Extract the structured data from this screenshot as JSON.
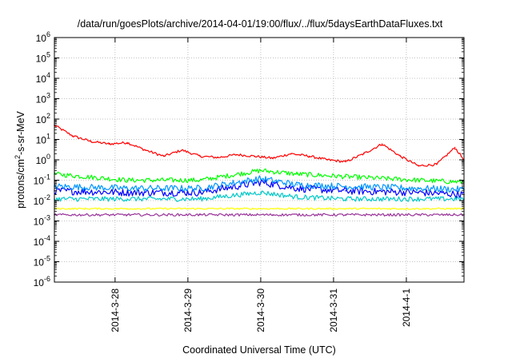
{
  "chart_data": {
    "type": "line",
    "title": "/data/run/goesPlots/archive/2014-04-01/19:00/flux/../flux/5daysEarthDataFluxes.txt",
    "xlabel": "Coordinated Universal Time (UTC)",
    "ylabel_parts": {
      "pre": "protons/cm",
      "sup": "2",
      "post": "-s-sr-MeV"
    },
    "y_scale": "log",
    "ylim": [
      1e-06,
      1000000.0
    ],
    "y_ticks": [
      {
        "value": 1000000.0,
        "base": "10",
        "exp": "6"
      },
      {
        "value": 100000.0,
        "base": "10",
        "exp": "5"
      },
      {
        "value": 10000.0,
        "base": "10",
        "exp": "4"
      },
      {
        "value": 1000.0,
        "base": "10",
        "exp": "3"
      },
      {
        "value": 100.0,
        "base": "10",
        "exp": "2"
      },
      {
        "value": 10.0,
        "base": "10",
        "exp": "1"
      },
      {
        "value": 1,
        "base": "10",
        "exp": "0"
      },
      {
        "value": 0.1,
        "base": "10",
        "exp": "-1"
      },
      {
        "value": 0.01,
        "base": "10",
        "exp": "-2"
      },
      {
        "value": 0.001,
        "base": "10",
        "exp": "-3"
      },
      {
        "value": 0.0001,
        "base": "10",
        "exp": "-4"
      },
      {
        "value": 1e-05,
        "base": "10",
        "exp": "-5"
      },
      {
        "value": 1e-06,
        "base": "10",
        "exp": "-6"
      }
    ],
    "x_range_days": [
      "2014-03-27 04:00",
      "2014-04-01 19:00"
    ],
    "x_ticks": [
      {
        "day": "2014-03-28",
        "label": "2014-3-28"
      },
      {
        "day": "2014-03-29",
        "label": "2014-3-29"
      },
      {
        "day": "2014-03-30",
        "label": "2014-3-30"
      },
      {
        "day": "2014-03-31",
        "label": "2014-3-31"
      },
      {
        "day": "2014-04-01",
        "label": "2014-4-1"
      }
    ],
    "grid": true,
    "series": [
      {
        "color": "#ff0000",
        "x": [
          "2014-03-27 04:00",
          "2014-03-27 10:00",
          "2014-03-27 16:00",
          "2014-03-27 22:00",
          "2014-03-28 04:00",
          "2014-03-28 10:00",
          "2014-03-28 16:00",
          "2014-03-28 22:00",
          "2014-03-29 04:00",
          "2014-03-29 10:00",
          "2014-03-29 16:00",
          "2014-03-29 22:00",
          "2014-03-30 04:00",
          "2014-03-30 10:00",
          "2014-03-30 16:00",
          "2014-03-30 22:00",
          "2014-03-31 04:00",
          "2014-03-31 10:00",
          "2014-03-31 16:00",
          "2014-03-31 22:00",
          "2014-04-01 04:00",
          "2014-04-01 10:00",
          "2014-04-01 16:00",
          "2014-04-01 19:00"
        ],
        "values": [
          50,
          15,
          8,
          6,
          7,
          3,
          1.5,
          3,
          1.5,
          1.3,
          1.8,
          1.5,
          1.2,
          2,
          1.5,
          1,
          0.8,
          2,
          6,
          1.5,
          0.5,
          0.6,
          4,
          1
        ]
      },
      {
        "color": "#00ff00",
        "x": [
          "2014-03-27 04:00",
          "2014-03-28 04:00",
          "2014-03-29 04:00",
          "2014-03-30 00:00",
          "2014-03-30 12:00",
          "2014-03-31 04:00",
          "2014-04-01 04:00",
          "2014-04-01 19:00"
        ],
        "values": [
          0.2,
          0.1,
          0.1,
          0.3,
          0.2,
          0.15,
          0.1,
          0.08
        ]
      },
      {
        "color": "#0000ff",
        "x": [
          "2014-03-27 04:00",
          "2014-03-28 04:00",
          "2014-03-29 04:00",
          "2014-03-30 00:00",
          "2014-03-30 12:00",
          "2014-03-31 04:00",
          "2014-04-01 04:00",
          "2014-04-01 19:00"
        ],
        "values": [
          0.03,
          0.025,
          0.025,
          0.08,
          0.04,
          0.03,
          0.025,
          0.02
        ]
      },
      {
        "color": "#0096ff",
        "x": [
          "2014-03-27 04:00",
          "2014-03-28 04:00",
          "2014-03-29 04:00",
          "2014-03-30 00:00",
          "2014-03-30 12:00",
          "2014-03-31 04:00",
          "2014-04-01 04:00",
          "2014-04-01 19:00"
        ],
        "values": [
          0.05,
          0.04,
          0.04,
          0.12,
          0.06,
          0.05,
          0.04,
          0.035
        ]
      },
      {
        "color": "#00c8c8",
        "x": [
          "2014-03-27 04:00",
          "2014-03-28 04:00",
          "2014-03-29 04:00",
          "2014-03-30 00:00",
          "2014-03-30 12:00",
          "2014-03-31 04:00",
          "2014-04-01 04:00",
          "2014-04-01 19:00"
        ],
        "values": [
          0.012,
          0.012,
          0.012,
          0.025,
          0.015,
          0.012,
          0.012,
          0.012
        ]
      },
      {
        "color": "#ffff00",
        "x": [
          "2014-03-27 04:00",
          "2014-03-28 04:00",
          "2014-03-29 04:00",
          "2014-03-30 04:00",
          "2014-03-31 04:00",
          "2014-04-01 04:00",
          "2014-04-01 19:00"
        ],
        "values": [
          0.004,
          0.004,
          0.004,
          0.004,
          0.004,
          0.004,
          0.004
        ]
      },
      {
        "color": "#993399",
        "x": [
          "2014-03-27 04:00",
          "2014-03-28 04:00",
          "2014-03-29 04:00",
          "2014-03-30 04:00",
          "2014-03-31 04:00",
          "2014-04-01 04:00",
          "2014-04-01 19:00"
        ],
        "values": [
          0.002,
          0.002,
          0.002,
          0.002,
          0.002,
          0.002,
          0.002
        ]
      }
    ]
  }
}
